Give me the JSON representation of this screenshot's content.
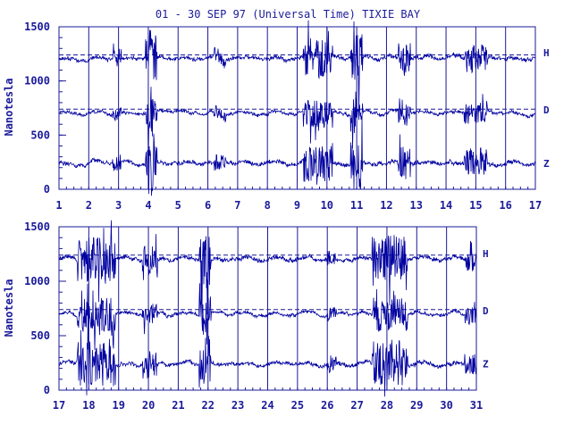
{
  "title": "01 - 30 SEP 97 (Universal Time) TIXIE BAY",
  "colors": {
    "ink": "#1a1a9a",
    "trace": "#0000a0",
    "background": "#ffffff"
  },
  "chart_data": [
    {
      "type": "line",
      "ylabel": "Nanotesla",
      "ylim": [
        0,
        1500
      ],
      "y_ticks": [
        "0",
        "500",
        "1000",
        "1500"
      ],
      "x_ticks": [
        "1",
        "2",
        "3",
        "4",
        "5",
        "6",
        "7",
        "8",
        "9",
        "10",
        "11",
        "12",
        "13",
        "14",
        "15",
        "16",
        "17"
      ],
      "xlim": [
        1,
        17
      ],
      "grid": "vertical lines at each day",
      "series": [
        {
          "name": "H",
          "baseline": 1210,
          "reference_line": 1240
        },
        {
          "name": "D",
          "baseline": 705,
          "reference_line": 740
        },
        {
          "name": "Z",
          "baseline": 240
        }
      ]
    },
    {
      "type": "line",
      "ylabel": "Nanotesla",
      "ylim": [
        0,
        1500
      ],
      "y_ticks": [
        "0",
        "500",
        "1000",
        "1500"
      ],
      "x_ticks": [
        "17",
        "18",
        "19",
        "20",
        "21",
        "22",
        "23",
        "24",
        "25",
        "26",
        "27",
        "28",
        "29",
        "30",
        "31"
      ],
      "xlim": [
        17,
        31
      ],
      "grid": "vertical lines at each day",
      "series": [
        {
          "name": "H",
          "baseline": 1205,
          "reference_line": 1240
        },
        {
          "name": "D",
          "baseline": 700,
          "reference_line": 740
        },
        {
          "name": "Z",
          "baseline": 240
        }
      ]
    }
  ]
}
